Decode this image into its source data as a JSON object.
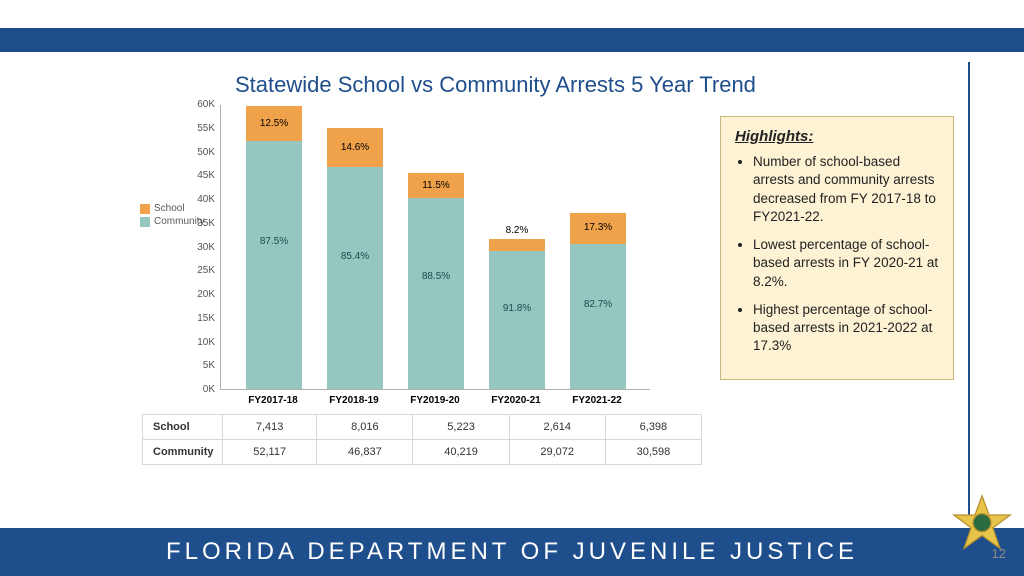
{
  "title": "Statewide School vs Community Arrests 5 Year Trend",
  "footer": "FLORIDA DEPARTMENT OF JUVENILE JUSTICE",
  "page_number": "12",
  "colors": {
    "school": "#f0a24a",
    "community": "#96c6c0",
    "header": "#1f4e8c",
    "highlight_bg": "#fdf3d4",
    "highlight_border": "#c8b67a"
  },
  "legend": {
    "school": "School",
    "community": "Community"
  },
  "chart": {
    "type": "stacked-bar",
    "ylim_max": 60000,
    "ytick_step": 5000,
    "yticks": [
      "0K",
      "5K",
      "10K",
      "15K",
      "20K",
      "25K",
      "30K",
      "35K",
      "40K",
      "45K",
      "50K",
      "55K",
      "60K"
    ],
    "categories": [
      "FY2017-18",
      "FY2018-19",
      "FY2019-20",
      "FY2020-21",
      "FY2021-22"
    ],
    "school_values": [
      7413,
      8016,
      5223,
      2614,
      6398
    ],
    "community_values": [
      52117,
      46837,
      40219,
      29072,
      30598
    ],
    "school_pct": [
      "12.5%",
      "14.6%",
      "11.5%",
      "8.2%",
      "17.3%"
    ],
    "community_pct": [
      "87.5%",
      "85.4%",
      "88.5%",
      "91.8%",
      "82.7%"
    ]
  },
  "table": {
    "row_school_label": "School",
    "row_community_label": "Community",
    "school_cells": [
      "7,413",
      "8,016",
      "5,223",
      "2,614",
      "6,398"
    ],
    "community_cells": [
      "52,117",
      "46,837",
      "40,219",
      "29,072",
      "30,598"
    ]
  },
  "highlights": {
    "title": "Highlights:",
    "items": [
      "Number of school-based arrests and community arrests decreased from FY 2017-18 to FY2021-22.",
      "Lowest percentage of school-based arrests in FY 2020-21 at 8.2%.",
      "Highest percentage of school-based arrests in 2021-2022 at 17.3%"
    ]
  }
}
